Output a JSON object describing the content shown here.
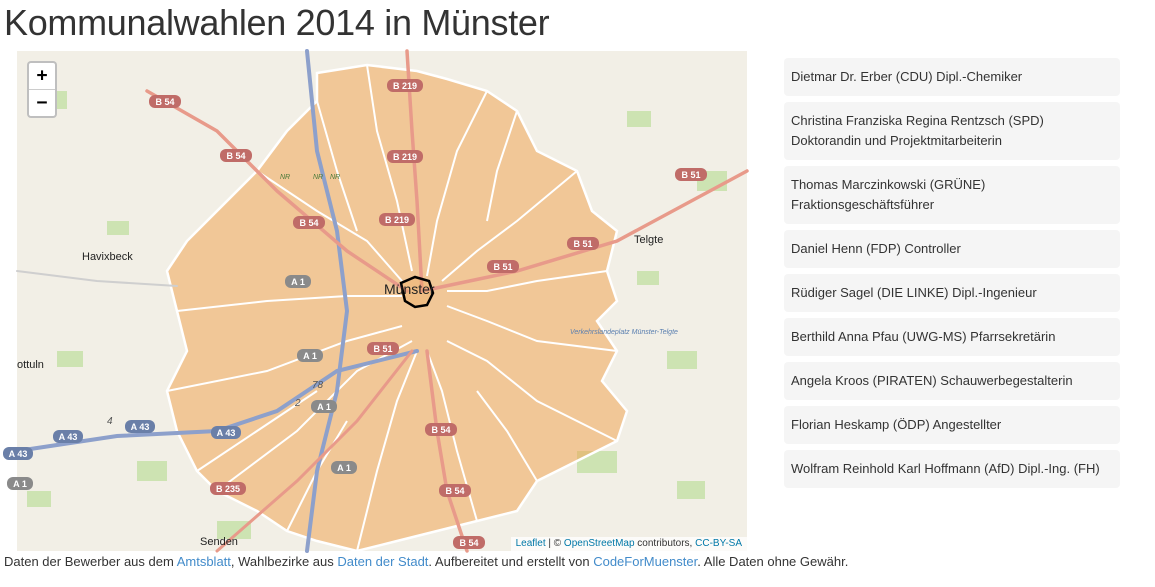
{
  "page": {
    "title": "Kommunalwahlen 2014 in Münster"
  },
  "map": {
    "zoom_in_label": "+",
    "zoom_out_label": "−",
    "place_labels": {
      "havixbeck": "Havixbeck",
      "muenster": "Münster",
      "telgte": "Telgte",
      "nottuln": "ottuln",
      "senden": "Senden",
      "landeplatz": "Verkehrslandeplatz Münster-Telgte",
      "nr1": "NR",
      "nr2": "NR",
      "nr3": "NR",
      "n_78": "78",
      "n_2": "2",
      "n_4": "4"
    },
    "road_labels": {
      "b54_a": "B 54",
      "b54_b": "B 54",
      "b54_c": "B 54",
      "b54_d": "B 54",
      "b54_e": "B 54",
      "b54_f": "B 54",
      "b219_a": "B 219",
      "b219_b": "B 219",
      "b219_c": "B 219",
      "b51_a": "B 51",
      "b51_b": "B 51",
      "b51_c": "B 51",
      "b51_d": "B 51",
      "a1_a": "A 1",
      "a1_b": "A 1",
      "a1_c": "A 1",
      "a1_d": "A 1",
      "a1_e": "A 1",
      "a43_a": "A 43",
      "a43_b": "A 43",
      "a43_c": "A 43",
      "a43_d": "A 43",
      "b235": "B 235"
    },
    "attribution": {
      "leaflet": "Leaflet",
      "separator": " | © ",
      "osm": "OpenStreetMap",
      "contributors": " contributors, ",
      "license": "CC-BY-SA"
    },
    "colors": {
      "district_fill": "#f0a656",
      "district_stroke": "#ffffff",
      "selected_stroke": "#000000"
    }
  },
  "candidates": [
    {
      "text": "Dietmar Dr. Erber (CDU) Dipl.-Chemiker"
    },
    {
      "text": "Christina Franziska Regina Rentzsch (SPD) Doktorandin und Projektmitarbeiterin"
    },
    {
      "text": "Thomas Marczinkowski (GRÜNE) Fraktionsgeschäftsführer"
    },
    {
      "text": "Daniel Henn (FDP) Controller"
    },
    {
      "text": "Rüdiger Sagel (DIE LINKE) Dipl.-Ingenieur"
    },
    {
      "text": "Berthild Anna Pfau (UWG-MS) Pfarrsekretärin"
    },
    {
      "text": "Angela Kroos (PIRATEN) Schauwerbegestalterin"
    },
    {
      "text": "Florian Heskamp (ÖDP) Angestellter"
    },
    {
      "text": "Wolfram Reinhold Karl Hoffmann (AfD) Dipl.-Ing. (FH)"
    }
  ],
  "footer": {
    "t1": "Daten der Bewerber aus dem ",
    "link1": "Amtsblatt",
    "t2": ", Wahlbezirke aus ",
    "link2": "Daten der Stadt",
    "t3": ". Aufbereitet und erstellt von ",
    "link3": "CodeForMuenster",
    "t4": ". Alle Daten ohne Gewähr."
  }
}
